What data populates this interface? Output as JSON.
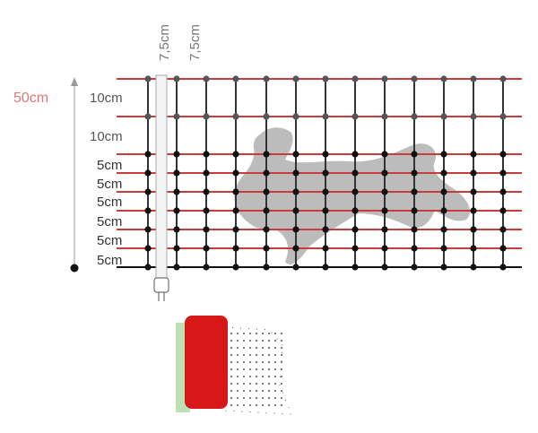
{
  "height_label": "50cm",
  "row_labels": [
    "10cm",
    "10cm",
    "5cm",
    "5cm",
    "5cm",
    "5cm",
    "5cm",
    "5cm"
  ],
  "spacing_labels": [
    "7,5cm",
    "7,5cm"
  ]
}
